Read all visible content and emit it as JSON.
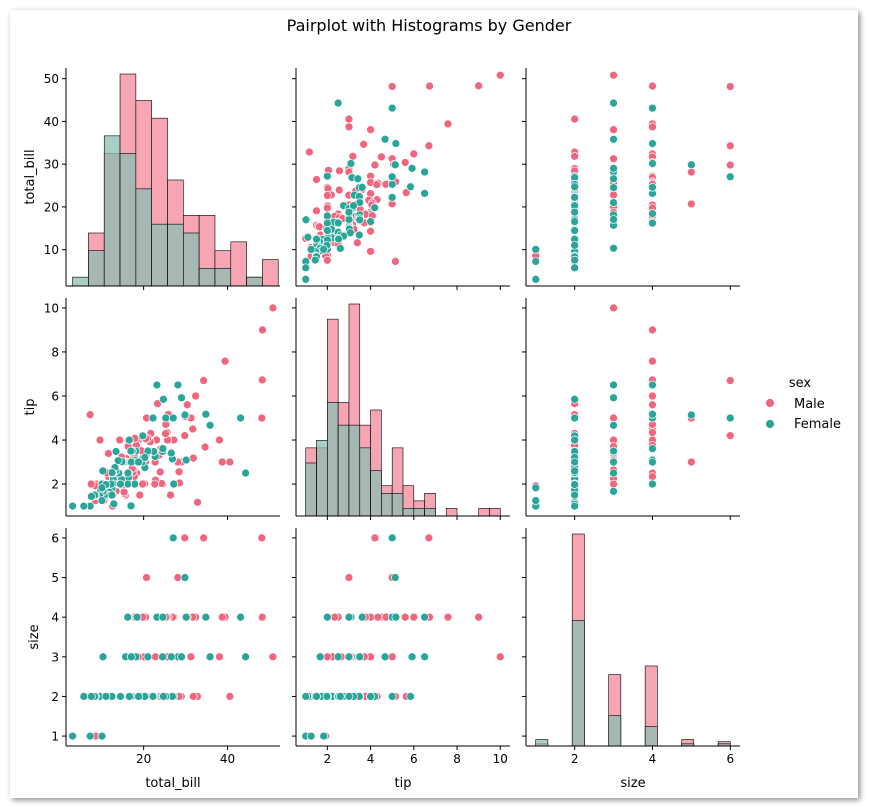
{
  "title": "Pairplot with Histograms by Gender",
  "variables": [
    "total_bill",
    "tip",
    "size"
  ],
  "legend": {
    "title": "sex",
    "entries": [
      {
        "label": "Male",
        "color": "#f0667e"
      },
      {
        "label": "Female",
        "color": "#2aa59a"
      }
    ]
  },
  "colors": {
    "male": "#f0667e",
    "female": "#2aa59a",
    "male_hist": "#f6a5b3",
    "female_hist": "#8cbdb3",
    "overlap_hist": "#c69aa3"
  },
  "chart_data": {
    "type": "scatter",
    "title": "Pairplot with Histograms by Gender",
    "axes": {
      "total_bill": {
        "label": "total_bill",
        "range": [
          1.5,
          52.5
        ],
        "ticks": [
          20,
          40
        ],
        "yticks": [
          10,
          20,
          30,
          40,
          50
        ]
      },
      "tip": {
        "label": "tip",
        "range": [
          0.55,
          10.45
        ],
        "ticks": [
          2,
          4,
          6,
          8,
          10
        ],
        "yticks": [
          2,
          4,
          6,
          8,
          10
        ]
      },
      "size": {
        "label": "size",
        "range": [
          0.75,
          6.25
        ],
        "ticks": [
          2,
          4,
          6
        ],
        "yticks": [
          1,
          2,
          3,
          4,
          5,
          6
        ]
      }
    },
    "hist_total_bill": {
      "bin_edges": [
        3.07,
        6.84,
        10.61,
        14.38,
        18.15,
        21.92,
        25.69,
        29.46,
        33.23,
        37.0,
        40.77,
        44.54,
        48.31,
        52.08
      ],
      "male": [
        0,
        6,
        15,
        24,
        21,
        19,
        12,
        8,
        8,
        4,
        5,
        1,
        3
      ],
      "female": [
        1,
        4,
        17,
        15,
        11,
        7,
        7,
        6,
        2,
        2,
        0,
        1,
        0
      ]
    },
    "hist_tip": {
      "bin_edges": [
        1.0,
        1.5,
        2.0,
        2.5,
        3.0,
        3.5,
        4.0,
        4.5,
        5.0,
        5.5,
        6.0,
        6.5,
        7.0,
        7.5,
        8.0,
        8.5,
        9.0,
        9.5,
        10.0
      ],
      "male": [
        9,
        9,
        26,
        15,
        28,
        12,
        14,
        4,
        9,
        4,
        2,
        3,
        0,
        1,
        0,
        0,
        1,
        1
      ],
      "female": [
        7,
        10,
        15,
        12,
        12,
        9,
        6,
        3,
        3,
        1,
        1,
        1,
        0,
        0,
        0,
        0,
        0,
        0
      ]
    },
    "hist_size": {
      "bin_edges": [
        1.0,
        1.3125,
        1.625,
        1.9375,
        2.25,
        2.5625,
        2.875,
        3.1875,
        3.5,
        3.8125,
        4.125,
        4.4375,
        4.75,
        5.0625,
        5.375,
        5.6875,
        6.0
      ],
      "male": [
        1,
        0,
        0,
        98,
        0,
        0,
        33,
        0,
        0,
        37,
        0,
        0,
        3,
        0,
        0,
        2
      ],
      "female": [
        3,
        0,
        0,
        58,
        0,
        0,
        14,
        0,
        0,
        9,
        0,
        0,
        1,
        0,
        0,
        1
      ]
    },
    "points": {
      "male": [
        [
          50.81,
          10,
          3
        ],
        [
          48.33,
          9,
          4
        ],
        [
          48.27,
          6.73,
          4
        ],
        [
          48.17,
          5,
          6
        ],
        [
          40.55,
          3,
          2
        ],
        [
          39.42,
          7.58,
          4
        ],
        [
          38.73,
          3,
          4
        ],
        [
          38.07,
          4,
          3
        ],
        [
          34.81,
          5.2,
          4
        ],
        [
          34.65,
          3.68,
          4
        ],
        [
          34.3,
          6.7,
          6
        ],
        [
          32.83,
          1.17,
          2
        ],
        [
          32.4,
          6,
          4
        ],
        [
          31.85,
          3.18,
          2
        ],
        [
          31.71,
          4.5,
          4
        ],
        [
          31.27,
          5,
          3
        ],
        [
          30.4,
          5.6,
          4
        ],
        [
          29.93,
          5.07,
          4
        ],
        [
          29.8,
          4.2,
          6
        ],
        [
          29.03,
          5.92,
          3
        ],
        [
          28.97,
          3,
          2
        ],
        [
          28.55,
          2.05,
          3
        ],
        [
          28.44,
          2.56,
          2
        ],
        [
          28.15,
          3,
          5
        ],
        [
          27.2,
          4,
          4
        ],
        [
          27.05,
          5,
          6
        ],
        [
          26.88,
          3.12,
          4
        ],
        [
          26.86,
          3.14,
          2
        ],
        [
          26.41,
          1.5,
          2
        ],
        [
          25.89,
          5.16,
          4
        ],
        [
          25.71,
          4,
          3
        ],
        [
          25.56,
          4.34,
          4
        ],
        [
          25.29,
          4.71,
          4
        ],
        [
          25.21,
          4.29,
          2
        ],
        [
          24.59,
          3.61,
          4
        ],
        [
          24.55,
          2,
          4
        ],
        [
          24.27,
          2.03,
          2
        ],
        [
          24.06,
          3.6,
          3
        ],
        [
          23.95,
          2.55,
          2
        ],
        [
          23.68,
          3.31,
          2
        ],
        [
          23.33,
          5.65,
          2
        ],
        [
          23.1,
          4,
          3
        ],
        [
          22.82,
          2.18,
          3
        ],
        [
          22.76,
          3,
          2
        ],
        [
          22.67,
          2,
          2
        ],
        [
          22.49,
          3.5,
          2
        ],
        [
          22.42,
          3.48,
          2
        ],
        [
          22.23,
          5,
          2
        ],
        [
          21.7,
          4.3,
          2
        ],
        [
          21.58,
          3.92,
          2
        ],
        [
          21.5,
          3.5,
          2
        ],
        [
          21.01,
          3.5,
          3
        ],
        [
          20.92,
          4.08,
          2
        ],
        [
          20.69,
          5,
          5
        ],
        [
          20.65,
          3.35,
          3
        ],
        [
          20.49,
          4.06,
          2
        ],
        [
          20.45,
          3,
          4
        ],
        [
          20.29,
          3.21,
          2
        ],
        [
          20.23,
          2.01,
          2
        ],
        [
          20.08,
          3.15,
          3
        ],
        [
          19.81,
          4.19,
          2
        ],
        [
          19.77,
          2,
          4
        ],
        [
          19.65,
          3,
          2
        ],
        [
          19.49,
          3.51,
          2
        ],
        [
          19.44,
          3,
          2
        ],
        [
          19.08,
          1.5,
          2
        ],
        [
          18.78,
          3,
          2
        ],
        [
          18.71,
          4,
          3
        ],
        [
          18.43,
          3,
          4
        ],
        [
          18.35,
          2.5,
          4
        ],
        [
          18.29,
          3.76,
          4
        ],
        [
          18.28,
          4,
          2
        ],
        [
          18.24,
          3.76,
          2
        ],
        [
          18.04,
          3,
          2
        ],
        [
          17.92,
          4.08,
          2
        ],
        [
          17.92,
          3.08,
          2
        ],
        [
          17.81,
          2.34,
          4
        ],
        [
          17.78,
          3.27,
          2
        ],
        [
          17.59,
          2.64,
          3
        ],
        [
          17.47,
          3.5,
          2
        ],
        [
          17.46,
          2.54,
          2
        ],
        [
          17.29,
          2.71,
          2
        ],
        [
          16.99,
          1.01,
          2
        ],
        [
          16.93,
          3.07,
          3
        ],
        [
          16.58,
          4,
          2
        ],
        [
          16.49,
          2,
          4
        ],
        [
          16.4,
          2.5,
          2
        ],
        [
          16.32,
          4,
          2
        ],
        [
          16.29,
          3.71,
          3
        ],
        [
          16.21,
          2,
          4
        ],
        [
          16.04,
          2.24,
          3
        ],
        [
          16,
          2,
          2
        ],
        [
          15.98,
          2.03,
          2
        ],
        [
          15.81,
          3.16,
          2
        ],
        [
          15.77,
          2.23,
          2
        ],
        [
          15.69,
          1.5,
          2
        ],
        [
          15.53,
          3,
          2
        ],
        [
          15.48,
          2.02,
          2
        ],
        [
          15.42,
          1.57,
          2
        ],
        [
          15.38,
          3,
          2
        ],
        [
          15.36,
          1.64,
          2
        ],
        [
          15.04,
          1.96,
          2
        ],
        [
          14.83,
          3.02,
          2
        ],
        [
          14.78,
          3.23,
          2
        ],
        [
          14.52,
          2,
          2
        ],
        [
          14.48,
          2,
          2
        ],
        [
          14.31,
          4,
          2
        ],
        [
          14.26,
          2.5,
          2
        ],
        [
          14.07,
          2.5,
          2
        ],
        [
          14,
          3,
          2
        ],
        [
          13.94,
          3.06,
          2
        ],
        [
          13.81,
          2,
          2
        ],
        [
          13.51,
          2,
          2
        ],
        [
          13.42,
          1.68,
          2
        ],
        [
          13.39,
          2.61,
          2
        ],
        [
          13.37,
          2,
          2
        ],
        [
          13.28,
          2.72,
          2
        ],
        [
          13.27,
          2.5,
          2
        ],
        [
          13.16,
          2.75,
          2
        ],
        [
          13.03,
          2,
          2
        ],
        [
          13,
          2,
          2
        ],
        [
          12.9,
          1.1,
          2
        ],
        [
          12.74,
          2.01,
          2
        ],
        [
          12.69,
          2,
          2
        ],
        [
          12.6,
          1,
          2
        ],
        [
          12.48,
          2.52,
          2
        ],
        [
          12.46,
          1.5,
          2
        ],
        [
          12.43,
          1.8,
          2
        ],
        [
          12.26,
          2,
          2
        ],
        [
          12.16,
          2.2,
          2
        ],
        [
          12.03,
          1.5,
          2
        ],
        [
          12.02,
          1.97,
          2
        ],
        [
          11.87,
          1.63,
          2
        ],
        [
          11.69,
          2.31,
          2
        ],
        [
          11.61,
          3.39,
          2
        ],
        [
          11.38,
          2,
          2
        ],
        [
          11.35,
          2.5,
          2
        ],
        [
          11.24,
          1.76,
          2
        ],
        [
          11.02,
          1.98,
          2
        ],
        [
          10.77,
          1.47,
          2
        ],
        [
          10.63,
          2,
          2
        ],
        [
          10.51,
          1.25,
          2
        ],
        [
          10.34,
          2,
          3
        ],
        [
          10.33,
          2,
          2
        ],
        [
          10.27,
          1.71,
          2
        ],
        [
          10.07,
          1.25,
          2
        ],
        [
          10.07,
          1.83,
          2
        ],
        [
          9.94,
          1.56,
          2
        ],
        [
          9.68,
          1.32,
          2
        ],
        [
          9.6,
          4,
          2
        ],
        [
          9.55,
          1.45,
          2
        ],
        [
          8.77,
          2,
          2
        ],
        [
          8.58,
          1.92,
          1
        ],
        [
          8.52,
          1.48,
          2
        ],
        [
          8.51,
          1.25,
          2
        ],
        [
          8.35,
          1.5,
          2
        ],
        [
          7.74,
          1.44,
          2
        ],
        [
          7.56,
          1.44,
          2
        ],
        [
          7.51,
          2,
          2
        ],
        [
          7.25,
          5.15,
          2
        ]
      ],
      "female": [
        [
          44.3,
          2.5,
          3
        ],
        [
          43.11,
          5,
          4
        ],
        [
          35.83,
          4.67,
          3
        ],
        [
          34.83,
          5.17,
          4
        ],
        [
          30.14,
          3.09,
          4
        ],
        [
          29.85,
          5.14,
          5
        ],
        [
          28.17,
          6.5,
          3
        ],
        [
          27.18,
          2,
          2
        ],
        [
          26.86,
          3.14,
          2
        ],
        [
          26.59,
          3.41,
          3
        ],
        [
          25.28,
          5,
          2
        ],
        [
          24.71,
          5.85,
          2
        ],
        [
          24.52,
          3.48,
          3
        ],
        [
          23.17,
          6.5,
          4
        ],
        [
          22.75,
          3.25,
          2
        ],
        [
          22.42,
          3.48,
          2
        ],
        [
          21.01,
          3.5,
          3
        ],
        [
          20.29,
          2.75,
          2
        ],
        [
          19.82,
          3.18,
          2
        ],
        [
          19.81,
          4.19,
          2
        ],
        [
          19.65,
          3,
          2
        ],
        [
          18.43,
          3,
          4
        ],
        [
          18.29,
          3,
          2
        ],
        [
          18.15,
          3.5,
          3
        ],
        [
          17.92,
          3.08,
          2
        ],
        [
          17.89,
          2,
          2
        ],
        [
          17.51,
          3,
          2
        ],
        [
          17.31,
          3.5,
          2
        ],
        [
          16.97,
          3.5,
          3
        ],
        [
          16.99,
          1.01,
          2
        ],
        [
          16.45,
          2.47,
          2
        ],
        [
          16.43,
          2.3,
          2
        ],
        [
          16.27,
          2.5,
          2
        ],
        [
          16.21,
          2,
          4
        ],
        [
          15.98,
          3,
          3
        ],
        [
          15.69,
          3,
          3
        ],
        [
          15.38,
          3,
          2
        ],
        [
          15.06,
          3,
          2
        ],
        [
          14.83,
          3.02,
          2
        ],
        [
          14.73,
          2.2,
          2
        ],
        [
          14.15,
          2,
          2
        ],
        [
          14.07,
          2.5,
          2
        ],
        [
          13.94,
          3.06,
          2
        ],
        [
          13.42,
          3.48,
          2
        ],
        [
          13.39,
          2.61,
          2
        ],
        [
          13.16,
          2.75,
          2
        ],
        [
          13,
          2,
          2
        ],
        [
          12.9,
          1.1,
          2
        ],
        [
          12.76,
          2.23,
          2
        ],
        [
          12.74,
          2.01,
          2
        ],
        [
          12.66,
          2.5,
          2
        ],
        [
          12.65,
          1.5,
          2
        ],
        [
          12.54,
          2.5,
          2
        ],
        [
          12.48,
          2.52,
          2
        ],
        [
          12.43,
          1.8,
          2
        ],
        [
          12.26,
          2,
          2
        ],
        [
          11.87,
          1.63,
          2
        ],
        [
          11.59,
          1.5,
          2
        ],
        [
          11.17,
          1.5,
          2
        ],
        [
          10.65,
          1.5,
          2
        ],
        [
          10.34,
          1.66,
          3
        ],
        [
          10.33,
          1.67,
          3
        ],
        [
          10.29,
          2.6,
          2
        ],
        [
          10.09,
          2,
          2
        ],
        [
          9.78,
          1.73,
          2
        ],
        [
          9.55,
          1.45,
          2
        ],
        [
          8.52,
          1.48,
          2
        ],
        [
          8.35,
          1.5,
          2
        ],
        [
          7.56,
          1.44,
          2
        ],
        [
          7.25,
          1,
          1
        ],
        [
          5.75,
          1,
          2
        ],
        [
          3.07,
          1,
          1
        ],
        [
          10.07,
          1.25,
          1
        ],
        [
          17.07,
          3,
          3
        ],
        [
          14.52,
          2,
          2
        ],
        [
          22.23,
          5,
          2
        ],
        [
          20.29,
          3.21,
          2
        ],
        [
          18.78,
          3,
          2
        ],
        [
          16.58,
          4,
          2
        ],
        [
          24.59,
          3.61,
          4
        ],
        [
          12.46,
          1.5,
          2
        ],
        [
          14.48,
          2,
          2
        ],
        [
          11.02,
          1.98,
          2
        ],
        [
          10.07,
          1.83,
          1
        ],
        [
          29.03,
          5.92,
          3
        ],
        [
          27.05,
          5,
          6
        ]
      ]
    }
  }
}
